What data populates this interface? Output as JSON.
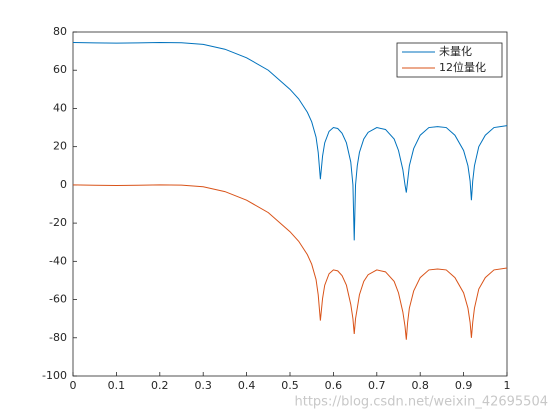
{
  "chart_data": {
    "type": "line",
    "x": [
      0,
      0.05,
      0.1,
      0.15,
      0.2,
      0.25,
      0.3,
      0.35,
      0.4,
      0.45,
      0.5,
      0.52,
      0.54,
      0.55,
      0.56,
      0.565,
      0.57,
      0.575,
      0.58,
      0.59,
      0.6,
      0.61,
      0.62,
      0.63,
      0.64,
      0.645,
      0.648,
      0.651,
      0.655,
      0.66,
      0.67,
      0.68,
      0.7,
      0.72,
      0.74,
      0.75,
      0.76,
      0.765,
      0.768,
      0.771,
      0.775,
      0.785,
      0.8,
      0.82,
      0.84,
      0.86,
      0.88,
      0.9,
      0.91,
      0.915,
      0.918,
      0.921,
      0.925,
      0.935,
      0.95,
      0.97,
      1.0
    ],
    "series": [
      {
        "name": "未量化",
        "color": "#0072bd",
        "values": [
          74.5,
          74.3,
          74.2,
          74.3,
          74.5,
          74.4,
          73.5,
          71,
          66.5,
          60,
          50,
          45,
          38,
          33,
          25,
          17,
          3,
          15,
          22,
          28,
          30,
          29.5,
          27,
          22,
          12,
          0,
          -29,
          0,
          10,
          17,
          24,
          27.5,
          30,
          29,
          24,
          18,
          8,
          0,
          -4,
          2,
          10,
          19,
          26,
          30,
          30.5,
          30,
          26,
          18,
          10,
          2,
          -8,
          2,
          10,
          20,
          26,
          30,
          31
        ]
      },
      {
        "name": "12位量化",
        "color": "#d95319",
        "values": [
          0,
          -0.2,
          -0.3,
          -0.2,
          0,
          -0.1,
          -1,
          -3.5,
          -8,
          -14.5,
          -24.5,
          -29.5,
          -36.5,
          -41.5,
          -49.5,
          -57.5,
          -71,
          -59.5,
          -52.5,
          -46.5,
          -44.5,
          -45,
          -47.5,
          -52.5,
          -62.5,
          -70,
          -78,
          -70,
          -64.5,
          -57.5,
          -50.5,
          -47,
          -44.5,
          -45.5,
          -50.5,
          -56.5,
          -66.5,
          -74,
          -81,
          -72,
          -64.5,
          -55.5,
          -48.5,
          -44.5,
          -44,
          -44.5,
          -48.5,
          -56.5,
          -64.5,
          -72,
          -80,
          -72,
          -64.5,
          -54.5,
          -48.5,
          -44.5,
          -43.5
        ]
      }
    ],
    "xlim": [
      0,
      1
    ],
    "xticks": [
      0,
      0.1,
      0.2,
      0.3,
      0.4,
      0.5,
      0.6,
      0.7,
      0.8,
      0.9,
      1
    ],
    "ylim": [
      -100,
      80
    ],
    "yticks": [
      -100,
      -80,
      -60,
      -40,
      -20,
      0,
      20,
      40,
      60,
      80
    ],
    "legend": "upper right",
    "watermark": "https://blog.csdn.net/weixin_42695504"
  }
}
